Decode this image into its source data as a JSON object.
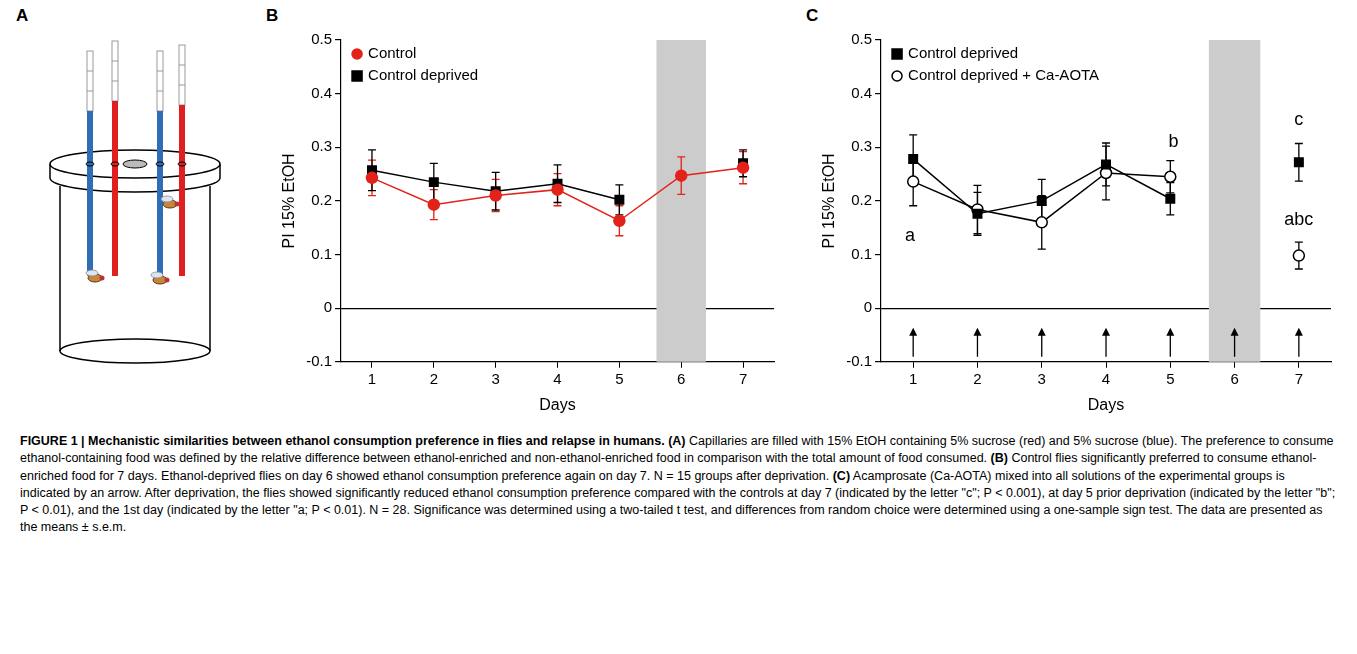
{
  "diagram": {
    "panel": "A"
  },
  "chart_data": [
    {
      "panel": "B",
      "type": "line",
      "x": [
        1,
        2,
        3,
        4,
        5,
        6,
        7
      ],
      "xlabel": "Days",
      "ylabel": "PI 15% EtOH",
      "xlim": [
        0.5,
        7.5
      ],
      "xticks": [
        1,
        2,
        3,
        4,
        5,
        6,
        7
      ],
      "ylim": [
        -0.1,
        0.5
      ],
      "yticks": [
        -0.1,
        0,
        0.1,
        0.2,
        0.3,
        0.4,
        0.5
      ],
      "grid": false,
      "legend": "upper left",
      "shaded_band": [
        5.6,
        6.4
      ],
      "series": [
        {
          "name": "Control",
          "color": "#e32219",
          "marker": "circle",
          "values": [
            0.243,
            0.193,
            0.21,
            0.221,
            0.163,
            0.247,
            0.262
          ],
          "errors": [
            0.033,
            0.028,
            0.03,
            0.03,
            0.028,
            0.035,
            0.03
          ]
        },
        {
          "name": "Control deprived",
          "color": "#000000",
          "marker": "square",
          "values": [
            0.257,
            0.235,
            0.218,
            0.232,
            0.202,
            null,
            0.27
          ],
          "errors": [
            0.038,
            0.035,
            0.035,
            0.035,
            0.028,
            null,
            0.025
          ]
        }
      ]
    },
    {
      "panel": "C",
      "type": "line",
      "x": [
        1,
        2,
        3,
        4,
        5,
        6,
        7
      ],
      "xlabel": "Days",
      "ylabel": "PI 15% EtOH",
      "xlim": [
        0.5,
        7.5
      ],
      "xticks": [
        1,
        2,
        3,
        4,
        5,
        6,
        7
      ],
      "ylim": [
        -0.1,
        0.5
      ],
      "yticks": [
        -0.1,
        0,
        0.1,
        0.2,
        0.3,
        0.4,
        0.5
      ],
      "grid": false,
      "legend": "upper left",
      "shaded_band": [
        5.6,
        6.4
      ],
      "arrows_x": [
        1,
        2,
        3,
        4,
        5,
        6,
        7
      ],
      "annotations": [
        {
          "text": "a",
          "x": 0.95,
          "y": 0.135
        },
        {
          "text": "b",
          "x": 5.05,
          "y": 0.31
        },
        {
          "text": "c",
          "x": 7,
          "y": 0.35
        },
        {
          "text": "abc",
          "x": 7,
          "y": 0.165
        }
      ],
      "series": [
        {
          "name": "Control deprived",
          "color": "#000000",
          "marker": "square",
          "values": [
            0.278,
            0.176,
            0.2,
            0.268,
            0.204,
            null,
            0.272
          ],
          "errors": [
            0.045,
            0.04,
            0.04,
            0.04,
            0.03,
            null,
            0.035
          ]
        },
        {
          "name": "Control deprived + Ca-AOTA",
          "color": "#000000",
          "marker": "open circle",
          "values": [
            0.236,
            0.184,
            0.16,
            0.252,
            0.245,
            null,
            0.098
          ],
          "errors": [
            0.045,
            0.045,
            0.05,
            0.05,
            0.03,
            null,
            0.025
          ]
        }
      ]
    }
  ],
  "caption": {
    "figure_label": "FIGURE 1 |",
    "title": "Mechanistic similarities between ethanol consumption preference in flies and relapse in humans.",
    "panels": [
      {
        "label": "(A)",
        "text": "Capillaries are filled with 15% EtOH containing 5% sucrose (red) and 5% sucrose (blue). The preference to consume ethanol-containing food was defined by the relative difference between ethanol-enriched and non-ethanol-enriched food in comparison with the total amount of food consumed."
      },
      {
        "label": "(B)",
        "text": "Control flies significantly preferred to consume ethanol-enriched food for 7 days. Ethanol-deprived flies on day 6 showed ethanol consumption preference again on day 7. N = 15 groups after deprivation."
      },
      {
        "label": "(C)",
        "text": "Acamprosate (Ca-AOTA) mixed into all solutions of the experimental groups is indicated by an arrow. After deprivation, the flies showed significantly reduced ethanol consumption preference compared with the controls at day 7 (indicated by the letter \"c\"; P < 0.001), at day 5 prior deprivation (indicated by the letter \"b\"; P < 0.01), and the 1st day (indicated by the letter \"a; P < 0.01). N = 28. Significance was determined using a two-tailed t test, and differences from random choice were determined using a one-sample sign test. The data are presented as the means ± s.e.m."
      }
    ]
  }
}
